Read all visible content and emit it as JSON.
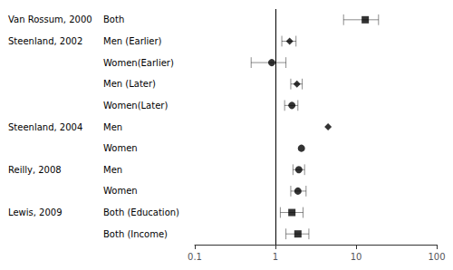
{
  "chart_data": {
    "type": "forest",
    "studies": [
      {
        "label": "Van Rossum, 2000",
        "rows": [
          {
            "label": "Both",
            "value": 13.0,
            "ci_low": 7.0,
            "ci_high": 19.0,
            "marker": "rect"
          }
        ]
      },
      {
        "label": "Steenland, 2002",
        "rows": [
          {
            "label": "Men (Earlier)",
            "value": 1.5,
            "ci_low": 1.2,
            "ci_high": 1.8,
            "marker": "diamond"
          },
          {
            "label": "Women(Earlier)",
            "value": 0.9,
            "ci_low": 0.5,
            "ci_high": 1.35,
            "marker": "circle"
          },
          {
            "label": "Men (Later)",
            "value": 1.85,
            "ci_low": 1.55,
            "ci_high": 2.15,
            "marker": "diamond"
          },
          {
            "label": "Women(Later)",
            "value": 1.6,
            "ci_low": 1.3,
            "ci_high": 1.9,
            "marker": "circle"
          }
        ]
      },
      {
        "label": "Steenland, 2004",
        "rows": [
          {
            "label": "Men",
            "value": 4.5,
            "ci_low": 4.5,
            "ci_high": 4.5,
            "marker": "diamond"
          },
          {
            "label": "Women",
            "value": 2.1,
            "ci_low": 2.1,
            "ci_high": 2.1,
            "marker": "circle"
          }
        ]
      },
      {
        "label": "Reilly, 2008",
        "rows": [
          {
            "label": "Men",
            "value": 1.95,
            "ci_low": 1.65,
            "ci_high": 2.3,
            "marker": "circle"
          },
          {
            "label": "Women",
            "value": 1.9,
            "ci_low": 1.55,
            "ci_high": 2.4,
            "marker": "circle"
          }
        ]
      },
      {
        "label": "Lewis, 2009",
        "rows": [
          {
            "label": "Both (Education)",
            "value": 1.6,
            "ci_low": 1.15,
            "ci_high": 2.2,
            "marker": "rect"
          },
          {
            "label": "Both (Income)",
            "value": 1.9,
            "ci_low": 1.35,
            "ci_high": 2.6,
            "marker": "rect"
          }
        ]
      }
    ],
    "reference_line": 1.0,
    "log": "x",
    "xlim": [
      0.1,
      100
    ],
    "xticks": [
      0.1,
      1,
      10,
      100
    ],
    "color": "black",
    "grid": false
  }
}
